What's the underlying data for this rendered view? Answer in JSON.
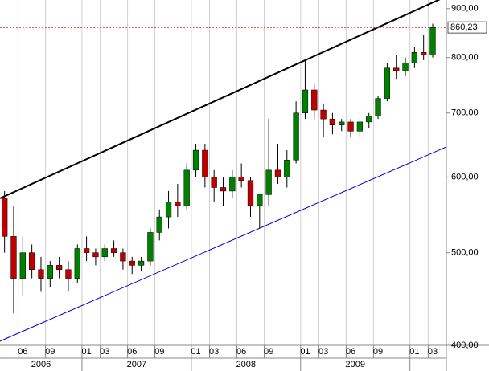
{
  "chart_data": {
    "type": "candlestick",
    "categories": [
      null,
      null,
      "06",
      null,
      null,
      "09",
      null,
      null,
      null,
      "01",
      null,
      "03",
      null,
      null,
      "06",
      null,
      null,
      "09",
      null,
      null,
      null,
      "01",
      null,
      "03",
      null,
      null,
      "06",
      null,
      null,
      "09",
      null,
      null,
      null,
      "01",
      null,
      "03",
      null,
      null,
      "06",
      null,
      null,
      "09",
      null,
      null,
      null,
      "01",
      null,
      "03",
      null
    ],
    "years": [
      "2006",
      "2007",
      "2008",
      "2009",
      null
    ],
    "open": [
      570,
      520,
      470,
      500,
      480,
      470,
      485,
      480,
      470,
      505,
      500,
      495,
      505,
      500,
      490,
      485,
      490,
      525,
      545,
      565,
      560,
      610,
      640,
      600,
      585,
      580,
      600,
      595,
      560,
      575,
      610,
      600,
      625,
      700,
      740,
      705,
      690,
      680,
      685,
      670,
      685,
      695,
      725,
      780,
      775,
      790,
      810,
      805,
      null
    ],
    "high": [
      580,
      560,
      520,
      510,
      495,
      490,
      495,
      490,
      510,
      520,
      505,
      510,
      515,
      505,
      495,
      495,
      530,
      555,
      580,
      590,
      620,
      650,
      650,
      610,
      600,
      610,
      620,
      600,
      570,
      690,
      650,
      640,
      720,
      795,
      750,
      715,
      700,
      690,
      690,
      690,
      700,
      730,
      790,
      805,
      800,
      820,
      845,
      868,
      null
    ],
    "low": [
      500,
      432,
      450,
      470,
      455,
      460,
      470,
      455,
      465,
      490,
      485,
      490,
      495,
      480,
      475,
      478,
      485,
      515,
      530,
      545,
      555,
      600,
      585,
      565,
      560,
      570,
      585,
      545,
      530,
      560,
      590,
      585,
      620,
      690,
      690,
      660,
      665,
      670,
      660,
      660,
      675,
      690,
      720,
      760,
      765,
      780,
      795,
      800,
      null
    ],
    "close": [
      520,
      470,
      500,
      480,
      470,
      485,
      480,
      470,
      505,
      500,
      495,
      505,
      500,
      490,
      485,
      490,
      525,
      545,
      565,
      560,
      610,
      640,
      600,
      585,
      580,
      600,
      595,
      560,
      575,
      610,
      600,
      625,
      700,
      740,
      705,
      690,
      680,
      685,
      670,
      685,
      695,
      725,
      780,
      775,
      790,
      810,
      805,
      860,
      null
    ],
    "up_color": "#008000",
    "down_color": "#c00000",
    "log_scale": true,
    "ylim": [
      400,
      919
    ],
    "yticks": [
      {
        "value": 400,
        "label": "400,00"
      },
      {
        "value": 500,
        "label": "500,00"
      },
      {
        "value": 600,
        "label": "600,00"
      },
      {
        "value": 700,
        "label": "700,00"
      },
      {
        "value": 800,
        "label": "800,00"
      },
      {
        "value": 900,
        "label": "900,00"
      }
    ],
    "last_price": {
      "value": 860.23,
      "label": "860,23",
      "color": "#cc0000"
    },
    "trendlines": [
      {
        "color": "#000000",
        "values": [
          570,
          927
        ]
      },
      {
        "color": "#0000cc",
        "values": [
          404,
          645
        ]
      }
    ],
    "xgrid": true
  }
}
